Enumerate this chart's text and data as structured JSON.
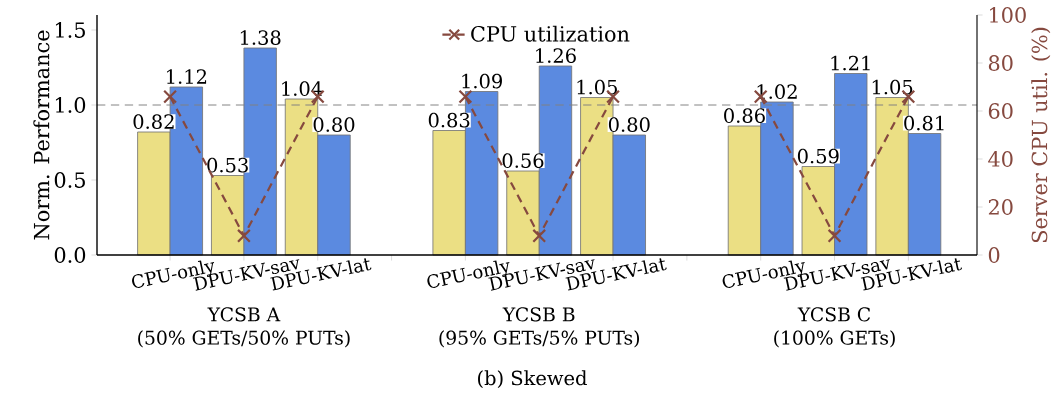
{
  "chart_data": {
    "type": "bar",
    "title": "(b) Skewed",
    "ylabel": "Norm. Performance",
    "y2label": "Server CPU util. (%)",
    "categories": [
      "CPU-only",
      "DPU-KV-sav",
      "DPU-KV-lat",
      null,
      "CPU-only",
      "DPU-KV-sav",
      "DPU-KV-lat",
      null,
      "CPU-only",
      "DPU-KV-sav",
      "DPU-KV-lat"
    ],
    "series": [
      {
        "color": "#ebdf84",
        "values": [
          0.82,
          0.53,
          1.04,
          null,
          0.83,
          0.56,
          1.05,
          null,
          0.86,
          0.59,
          1.05
        ],
        "value_labels": [
          "0.82",
          "0.53",
          "1.04",
          null,
          "0.83",
          "0.56",
          "1.05",
          null,
          "0.86",
          "0.59",
          "1.05"
        ]
      },
      {
        "color": "#5b8ae0",
        "values": [
          1.12,
          1.38,
          0.8,
          null,
          1.09,
          1.26,
          0.8,
          null,
          1.02,
          1.21,
          0.81
        ],
        "value_labels": [
          "1.12",
          "1.38",
          "0.80",
          null,
          "1.09",
          "1.26",
          "0.80",
          null,
          "1.02",
          "1.21",
          "0.81"
        ]
      },
      {
        "type": "line",
        "axis": "y2",
        "name": "CPU utilization",
        "color": "#86493f",
        "marker": "cross",
        "line_style": "dashed",
        "values": [
          66,
          8,
          66,
          null,
          66,
          8,
          66,
          null,
          66,
          8,
          66
        ]
      }
    ],
    "ylim": [
      0,
      1.6
    ],
    "yticks": [
      {
        "value": 0,
        "label": "0.0"
      },
      {
        "value": 0.5,
        "label": "0.5"
      },
      {
        "value": 1,
        "label": "1.0"
      },
      {
        "value": 1.5,
        "label": "1.5"
      }
    ],
    "y2lim": [
      0,
      100
    ],
    "y2ticks": [
      0,
      20,
      40,
      60,
      80,
      100
    ],
    "ref_lines": [
      {
        "axis": "y",
        "value": 1.0,
        "color": "#808080",
        "line_style": "dashed"
      }
    ],
    "legend": "top",
    "annotations": [
      "YCSB A",
      "(50% GETs/50% PUTs)",
      "YCSB B",
      "(95% GETs/5% PUTs)",
      "YCSB C",
      "(100% GETs)"
    ]
  }
}
